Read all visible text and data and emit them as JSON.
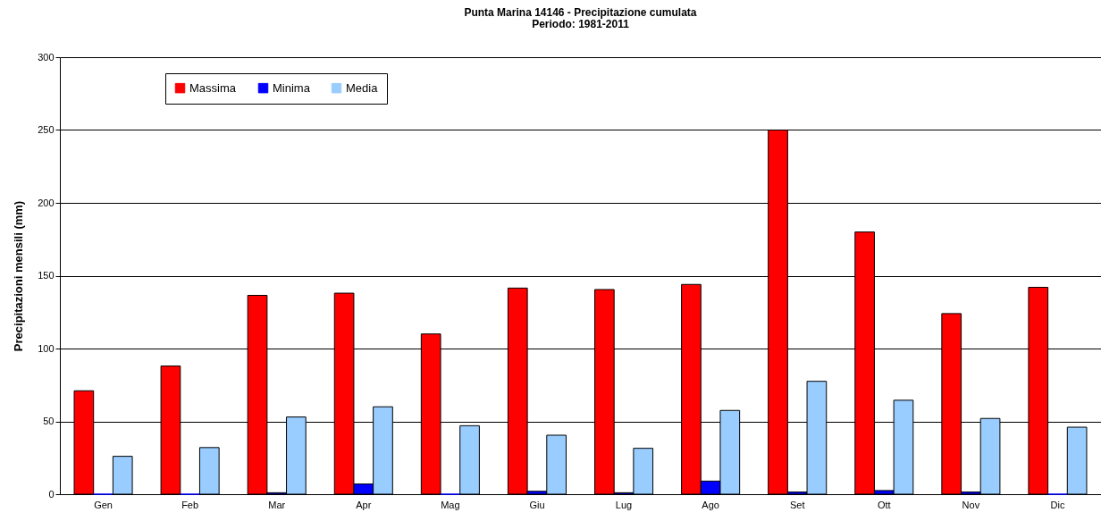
{
  "chart_data": {
    "type": "bar",
    "title": "Punta Marina 14146 - Precipitazione cumulata",
    "subtitle": "Periodo: 1981-2011",
    "ylabel": "Precipitazioni mensili (mm)",
    "categories": [
      "Gen",
      "Feb",
      "Mar",
      "Apr",
      "Mag",
      "Giu",
      "Lug",
      "Ago",
      "Set",
      "Ott",
      "Nov",
      "Dic"
    ],
    "series": [
      {
        "name": "Massima",
        "color": "#ff0000",
        "values": [
          71,
          88,
          136.5,
          138,
          110,
          141.5,
          140.5,
          144,
          250,
          180,
          124,
          142
        ]
      },
      {
        "name": "Minima",
        "color": "#0000ff",
        "values": [
          0,
          0,
          1,
          7,
          0,
          2,
          1,
          9,
          1.5,
          2.5,
          1.5,
          0
        ]
      },
      {
        "name": "Media",
        "color": "#99ccff",
        "values": [
          26,
          32,
          53,
          60,
          47,
          40.5,
          31.5,
          57.5,
          77.5,
          64.5,
          52,
          46
        ]
      }
    ],
    "ylim": [
      0,
      300
    ],
    "yticks": [
      0,
      50,
      100,
      150,
      200,
      250,
      300
    ],
    "grid": "y",
    "legend": "top left"
  }
}
